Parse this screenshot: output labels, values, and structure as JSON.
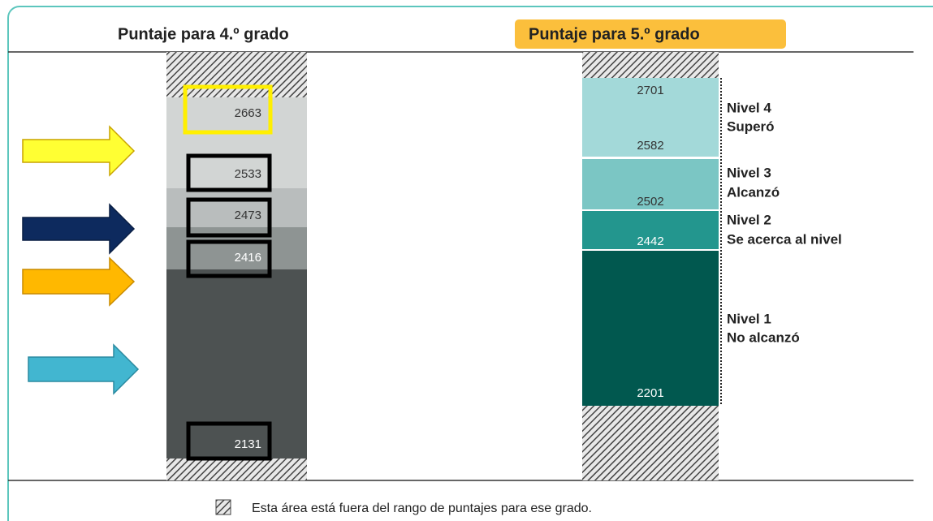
{
  "headers": [
    "Puntaje para 4.º grado",
    "Puntaje para 5.º grado"
  ],
  "grade4": {
    "scores": [
      2663,
      2533,
      2473,
      2416,
      2131
    ]
  },
  "grade5": {
    "scores": [
      2701,
      2582,
      2502,
      2442,
      2201
    ],
    "levels": [
      {
        "name": "Nivel 4",
        "label": "Superó"
      },
      {
        "name": "Nivel 3",
        "label": "Alcanzó"
      },
      {
        "name": "Nivel 2",
        "label": "Se acerca al nivel"
      },
      {
        "name": "Nivel 1",
        "label": "No alcanzó"
      }
    ]
  },
  "footnote": "Esta área está fuera del rango de puntajes para ese grado."
}
